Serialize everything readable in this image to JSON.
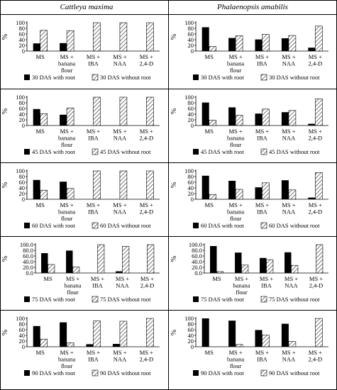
{
  "headers": [
    "Cattleya maxima",
    "Phalaenopsis amabilis"
  ],
  "categories": [
    [
      "MS"
    ],
    [
      "MS +",
      "banana",
      "flour"
    ],
    [
      "MS +",
      "IBA"
    ],
    [
      "MS +",
      "NAA"
    ],
    [
      "MS +",
      "2,4-D"
    ]
  ],
  "colors": {
    "with_root": "#000000",
    "without_root": "hatch"
  },
  "chart_data": [
    {
      "type": "bar",
      "panel": "Cattleya maxima",
      "ylabel": "%",
      "ylim": [
        0,
        100
      ],
      "yticks": [
        "0",
        "20",
        "40",
        "60",
        "80",
        "100"
      ],
      "series": [
        {
          "name": "30 DAS  with root",
          "values": [
            27,
            28,
            0,
            0,
            0
          ]
        },
        {
          "name": "30 DAS  without root",
          "values": [
            73,
            72,
            100,
            100,
            100
          ]
        }
      ]
    },
    {
      "type": "bar",
      "panel": "Phalaenopsis amabilis",
      "ylabel": "%",
      "ylim": [
        0,
        100
      ],
      "yticks": [
        "0",
        "20",
        "40",
        "60",
        "80",
        "100"
      ],
      "series": [
        {
          "name": "30 DAS  with root",
          "values": [
            84,
            46,
            41,
            45,
            12
          ]
        },
        {
          "name": "30 DAS  without root",
          "values": [
            16,
            54,
            59,
            55,
            88
          ]
        }
      ]
    },
    {
      "type": "bar",
      "panel": "Cattleya maxima",
      "ylabel": "%",
      "ylim": [
        0,
        100
      ],
      "yticks": [
        "0",
        "20",
        "40",
        "60",
        "80",
        "100"
      ],
      "series": [
        {
          "name": "45 DAS  with root",
          "values": [
            58,
            38,
            0,
            0,
            0
          ]
        },
        {
          "name": "45 DAS  without root",
          "values": [
            42,
            62,
            100,
            100,
            100
          ]
        }
      ]
    },
    {
      "type": "bar",
      "panel": "Phalaenopsis amabilis",
      "ylabel": "%",
      "ylim": [
        0,
        100
      ],
      "yticks": [
        "0",
        "20",
        "40",
        "60",
        "80",
        "100"
      ],
      "series": [
        {
          "name": "45 DAS  with root",
          "values": [
            81,
            64,
            42,
            47,
            6
          ]
        },
        {
          "name": "45 DAS  without root",
          "values": [
            19,
            36,
            58,
            53,
            94
          ]
        }
      ]
    },
    {
      "type": "bar",
      "panel": "Cattleya maxima",
      "ylabel": "%",
      "ylim": [
        0,
        100
      ],
      "yticks": [
        "0",
        "20",
        "40",
        "60",
        "80",
        "100"
      ],
      "series": [
        {
          "name": "60 DAS with root",
          "values": [
            68,
            62,
            0,
            0,
            0
          ]
        },
        {
          "name": "60 DAS without root",
          "values": [
            32,
            38,
            100,
            100,
            100
          ]
        }
      ]
    },
    {
      "type": "bar",
      "panel": "Phalaenopsis amabilis",
      "ylabel": "%",
      "ylim": [
        0,
        100
      ],
      "yticks": [
        "0",
        "20",
        "40",
        "60",
        "80",
        "100"
      ],
      "series": [
        {
          "name": "60 DAS with root",
          "values": [
            83,
            65,
            42,
            67,
            6
          ]
        },
        {
          "name": "60 DAS without root",
          "values": [
            17,
            35,
            58,
            33,
            94
          ]
        }
      ]
    },
    {
      "type": "bar",
      "panel": "Cattleya maxima",
      "ylabel": "%",
      "ylim": [
        0,
        100
      ],
      "yticks": [
        "0.0",
        "20.0",
        "40.0",
        "60.0",
        "80.0",
        "100.0"
      ],
      "series": [
        {
          "name": "75 DAS with root",
          "values": [
            70,
            79,
            0,
            6,
            0
          ]
        },
        {
          "name": "75 DAS without root",
          "values": [
            30,
            21,
            100,
            94,
            100
          ]
        }
      ]
    },
    {
      "type": "bar",
      "panel": "Phalaenopsis amabilis",
      "ylabel": "%",
      "ylim": [
        0,
        100
      ],
      "yticks": [
        "0.0",
        "20.0",
        "40.0",
        "60.0",
        "80.0",
        "100.0"
      ],
      "series": [
        {
          "name": "75 DAS with root",
          "values": [
            95,
            72,
            53,
            73,
            0
          ]
        },
        {
          "name": "75 DAS without root",
          "values": [
            5,
            28,
            47,
            27,
            100
          ]
        }
      ]
    },
    {
      "type": "bar",
      "panel": "Cattleya maxima",
      "ylabel": "%",
      "ylim": [
        0,
        100
      ],
      "yticks": [
        "0",
        "20",
        "40",
        "60",
        "80",
        "100"
      ],
      "series": [
        {
          "name": "90 DAS with root",
          "values": [
            73,
            86,
            9,
            10,
            0
          ]
        },
        {
          "name": "90 DAS without root",
          "values": [
            27,
            14,
            91,
            90,
            100
          ]
        }
      ]
    },
    {
      "type": "bar",
      "panel": "Phalaenopsis amabilis",
      "ylabel": "%",
      "ylim": [
        0,
        100
      ],
      "yticks": [
        "0",
        "20",
        "40",
        "60",
        "80",
        "100"
      ],
      "series": [
        {
          "name": "90 DAS with root",
          "values": [
            100,
            92,
            59,
            81,
            0
          ]
        },
        {
          "name": "90 DAS without root",
          "values": [
            0,
            8,
            41,
            19,
            100
          ]
        }
      ]
    }
  ]
}
